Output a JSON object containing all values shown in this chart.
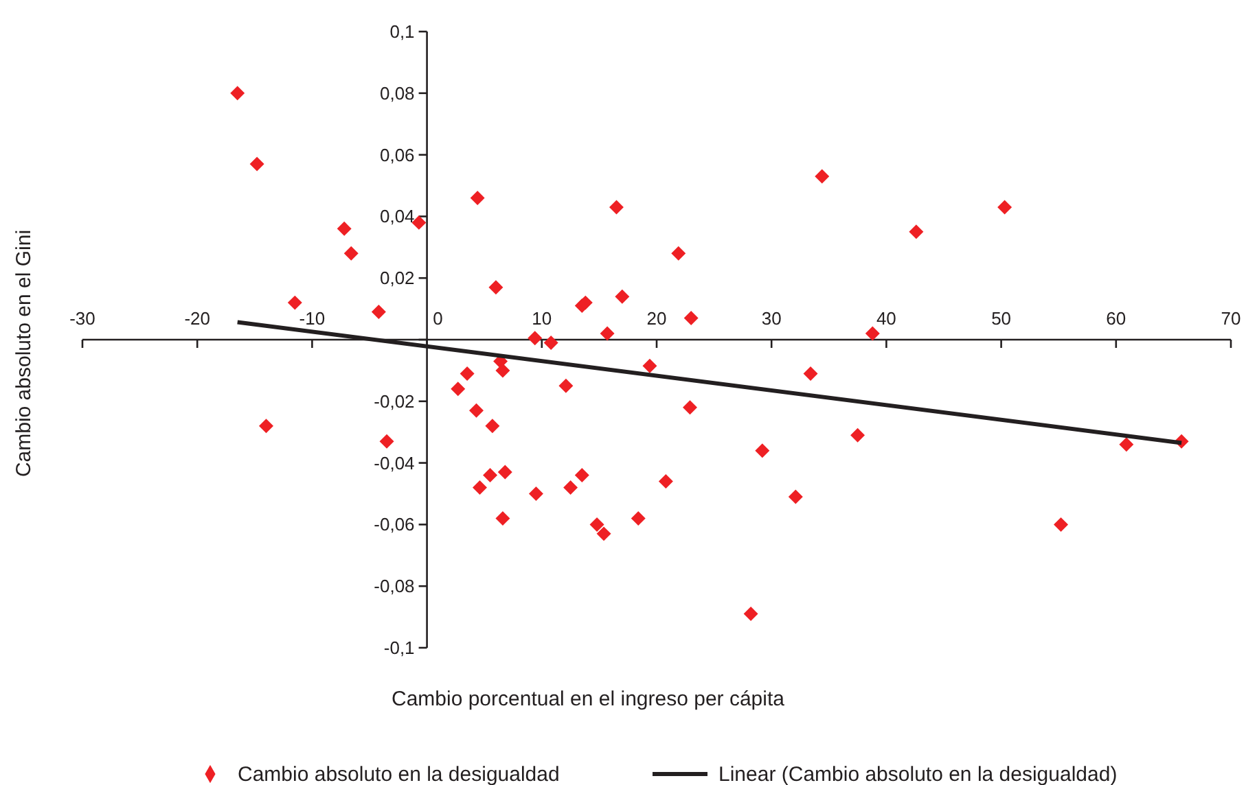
{
  "chart_data": {
    "type": "scatter",
    "xlabel": "Cambio porcentual en el ingreso per cápita",
    "ylabel": "Cambio absoluto en el Gini",
    "xlim": [
      -30,
      70
    ],
    "xticks": [
      -30,
      -20,
      -10,
      0,
      10,
      20,
      30,
      40,
      50,
      60,
      70
    ],
    "ylim": [
      -0.1,
      0.1
    ],
    "yticks": [
      {
        "value": -0.1,
        "label": "-0,1"
      },
      {
        "value": -0.08,
        "label": "-0,08"
      },
      {
        "value": -0.06,
        "label": "-0,06"
      },
      {
        "value": -0.04,
        "label": "-0,04"
      },
      {
        "value": -0.02,
        "label": "-0,02"
      },
      {
        "value": 0,
        "label": null
      },
      {
        "value": 0.02,
        "label": "0,02"
      },
      {
        "value": 0.04,
        "label": "0,04"
      },
      {
        "value": 0.06,
        "label": "0,06"
      },
      {
        "value": 0.08,
        "label": "0,08"
      },
      {
        "value": 0.1,
        "label": "0,1"
      }
    ],
    "grid": false,
    "legend": "bottom",
    "series": [
      {
        "name": "Cambio absoluto en la desigualdad",
        "type": "scatter",
        "color": "#ee2024",
        "marker": "diamond",
        "x": [
          -16.5,
          -14.8,
          -11.5,
          -7.2,
          -6.6,
          -4.2,
          -0.7,
          4.4,
          6.0,
          9.4,
          10.8,
          13.5,
          13.8,
          16.5,
          17.0,
          15.7,
          21.9,
          23.0,
          34.4,
          42.6,
          38.8,
          50.3,
          -14.0,
          -3.5,
          2.7,
          3.5,
          4.3,
          5.7,
          6.4,
          6.6,
          4.6,
          5.5,
          6.8,
          6.6,
          9.5,
          12.1,
          12.5,
          13.5,
          14.8,
          15.4,
          18.4,
          19.4,
          20.8,
          22.9,
          33.4,
          29.2,
          37.5,
          32.1,
          28.2,
          60.9,
          65.7,
          55.2
        ],
        "values": [
          0.08,
          0.057,
          0.012,
          0.036,
          0.028,
          0.009,
          0.038,
          0.046,
          0.017,
          0.0005,
          -0.001,
          0.011,
          0.012,
          0.043,
          0.014,
          0.002,
          0.028,
          0.007,
          0.053,
          0.035,
          0.002,
          0.043,
          -0.028,
          -0.033,
          -0.016,
          -0.011,
          -0.023,
          -0.028,
          -0.007,
          -0.01,
          -0.048,
          -0.044,
          -0.043,
          -0.058,
          -0.05,
          -0.015,
          -0.048,
          -0.044,
          -0.06,
          -0.063,
          -0.058,
          -0.0085,
          -0.046,
          -0.022,
          -0.011,
          -0.036,
          -0.031,
          -0.051,
          -0.089,
          -0.034,
          -0.033,
          -0.06
        ]
      },
      {
        "name": "Linear (Cambio absoluto en la desigualdad)",
        "type": "line",
        "color": "#231f20",
        "line_style": "solid",
        "marker": "none",
        "x": [
          -16.5,
          65.7
        ],
        "values": [
          0.0057,
          -0.0335
        ]
      }
    ]
  }
}
